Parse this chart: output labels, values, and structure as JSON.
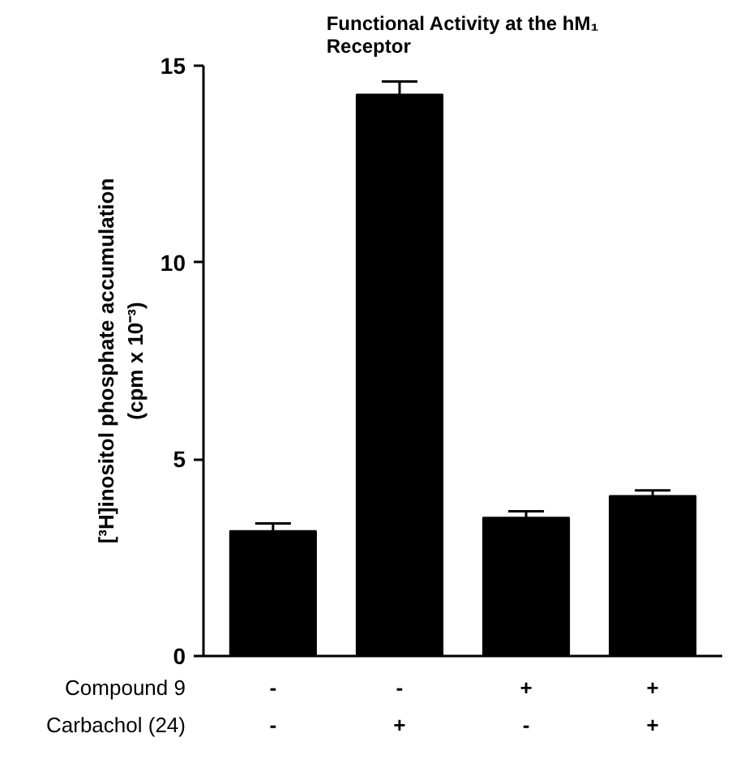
{
  "chart_data": {
    "type": "bar",
    "title": "Functional Activity at the hM₁\nReceptor",
    "ylabel": "[³H]inositol phosphate accumulation\n(cpm x 10⁻³)",
    "categories": [
      "-\n-",
      "-\n+",
      "+\n-",
      "+\n+"
    ],
    "values": [
      3.18,
      14.27,
      3.52,
      4.07
    ],
    "errors": [
      0.19,
      0.33,
      0.16,
      0.14
    ],
    "color": "#000000",
    "ylim": [
      0,
      15
    ],
    "yticks": [
      0,
      5,
      10,
      15
    ],
    "grid": false,
    "annotations": [
      "Compound 9",
      "Carbachol (24)"
    ]
  }
}
